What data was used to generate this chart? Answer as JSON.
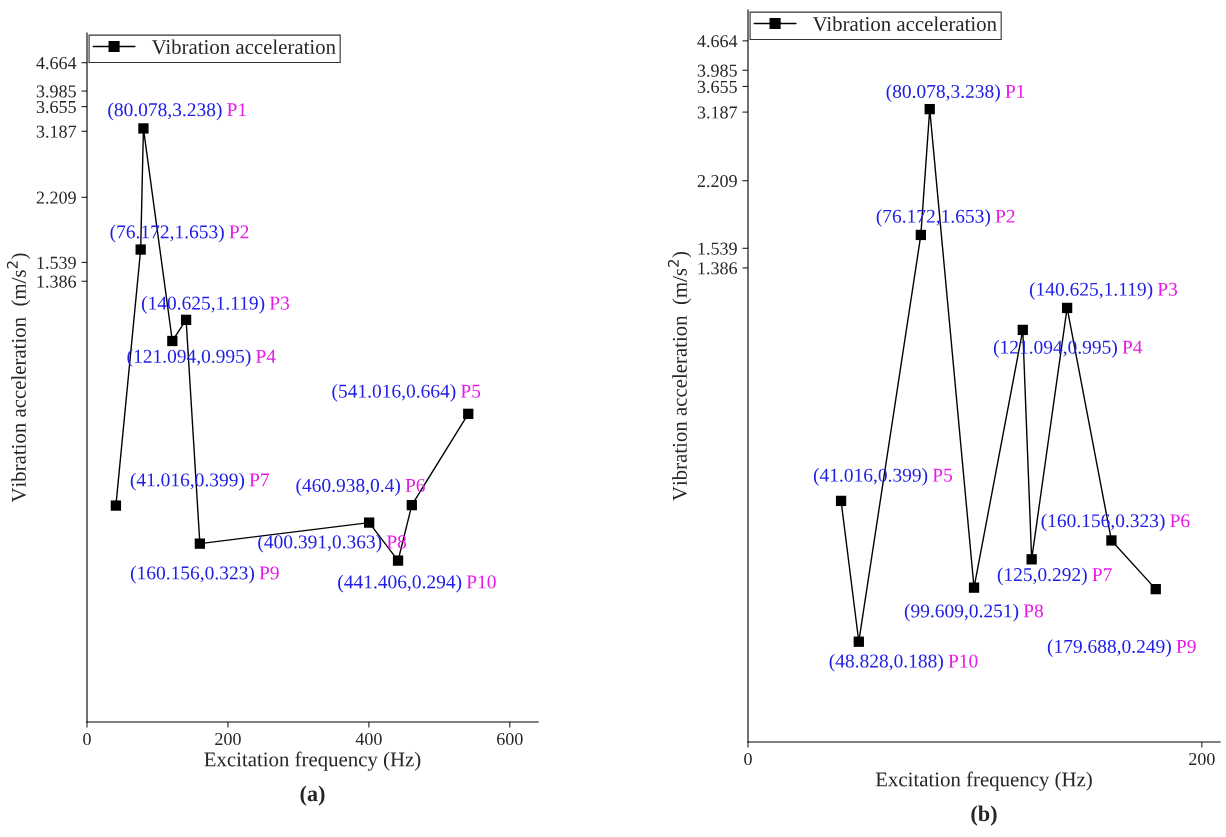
{
  "chart_data": [
    {
      "type": "line",
      "title": "(a)",
      "xlabel": "Excitation frequency (Hz)",
      "ylabel": "Vibration acceleration  (m/s$^{2}$)",
      "log": "y",
      "marker": "square",
      "line_style": "solid",
      "legend": "top left",
      "grid": false,
      "xlim": [
        0,
        640
      ],
      "xticks": [
        0,
        200,
        400,
        600
      ],
      "ylim": [
        0.12,
        5.5
      ],
      "yticks": [
        1.386,
        1.539,
        2.209,
        3.187,
        3.655,
        3.985,
        4.664
      ],
      "series": [
        {
          "name": "Vibration acceleration",
          "color": "#000000",
          "x": [
            41.016,
            76.172,
            80.078,
            121.094,
            140.625,
            160.156,
            400.391,
            441.406,
            460.938,
            541.016
          ],
          "values": [
            0.399,
            1.653,
            3.238,
            0.995,
            1.119,
            0.323,
            0.363,
            0.294,
            0.4,
            0.664
          ]
        }
      ],
      "annotations": [
        {
          "text": "(80.078,3.238)",
          "x": 80.078,
          "y": 3.238
        },
        "P1",
        {
          "text": "(76.172,1.653)",
          "x": 76.172,
          "y": 1.653
        },
        "P2",
        {
          "text": "(140.625,1.119)",
          "x": 140.625,
          "y": 1.119
        },
        "P3",
        {
          "text": "(121.094,0.995)",
          "x": 121.094,
          "y": 0.995
        },
        "P4",
        {
          "text": "(541.016,0.664)",
          "x": 541.016,
          "y": 0.664
        },
        "P5",
        {
          "text": "(460.938,0.4)",
          "x": 460.938,
          "y": 0.4
        },
        "P6",
        {
          "text": "(41.016,0.399)",
          "x": 41.016,
          "y": 0.399
        },
        "P7",
        {
          "text": "(400.391,0.363)",
          "x": 400.391,
          "y": 0.363
        },
        "P8",
        {
          "text": "(160.156,0.323)",
          "x": 160.156,
          "y": 0.323
        },
        "P9",
        {
          "text": "(441.406,0.294)",
          "x": 441.406,
          "y": 0.294
        },
        "P10"
      ]
    },
    {
      "type": "line",
      "title": "(b)",
      "xlabel": "Excitation frequency (Hz)",
      "ylabel": "Vibration acceleration  (m/s$^{2}$)",
      "log": "y",
      "marker": "square",
      "line_style": "solid",
      "legend": "top left",
      "grid": false,
      "xlim": [
        0,
        208
      ],
      "xticks": [
        0,
        200
      ],
      "ylim": [
        0.11,
        5.5
      ],
      "yticks": [
        1.386,
        1.539,
        2.209,
        3.187,
        3.655,
        3.985,
        4.664
      ],
      "series": [
        {
          "name": "Vibration acceleration",
          "color": "#000000",
          "x": [
            41.016,
            48.828,
            76.172,
            80.078,
            99.609,
            121.094,
            125,
            140.625,
            160.156,
            179.688
          ],
          "values": [
            0.399,
            0.188,
            1.653,
            3.238,
            0.251,
            0.995,
            0.292,
            1.119,
            0.323,
            0.249
          ]
        }
      ],
      "annotations": [
        {
          "text": "(80.078,3.238)",
          "x": 80.078,
          "y": 3.238
        },
        "P1",
        {
          "text": "(76.172,1.653)",
          "x": 76.172,
          "y": 1.653
        },
        "P2",
        {
          "text": "(140.625,1.119)",
          "x": 140.625,
          "y": 1.119
        },
        "P3",
        {
          "text": "(121.094,0.995)",
          "x": 121.094,
          "y": 0.995
        },
        "P4",
        {
          "text": "(41.016,0.399)",
          "x": 41.016,
          "y": 0.399
        },
        "P5",
        {
          "text": "(160.156,0.323)",
          "x": 160.156,
          "y": 0.323
        },
        "P6",
        {
          "text": "(125,0.292)",
          "x": 125,
          "y": 0.292
        },
        "P7",
        {
          "text": "(99.609,0.251)",
          "x": 99.609,
          "y": 0.251
        },
        "P8",
        {
          "text": "(179.688,0.249)",
          "x": 179.688,
          "y": 0.249
        },
        "P9",
        {
          "text": "(48.828,0.188)",
          "x": 48.828,
          "y": 0.188
        },
        "P10"
      ]
    }
  ]
}
